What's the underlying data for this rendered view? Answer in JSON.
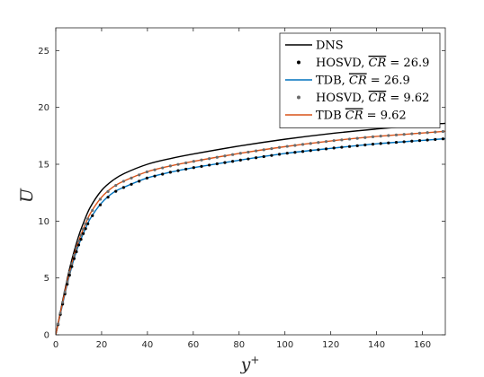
{
  "chart_data": {
    "type": "line",
    "title": "",
    "xlabel": "y",
    "xlabel_sup": "+",
    "ylabel": "U",
    "ylabel_accent": "bar",
    "xlim": [
      0,
      170
    ],
    "ylim": [
      0,
      27
    ],
    "x_ticks": [
      0,
      20,
      40,
      60,
      80,
      100,
      120,
      140,
      160
    ],
    "y_ticks": [
      0,
      5,
      10,
      15,
      20,
      25
    ],
    "grid": false,
    "legend_position": "top-right",
    "legend": [
      {
        "id": "dns",
        "text": "DNS",
        "marker": "line",
        "color": "#000000"
      },
      {
        "id": "hosvd1",
        "prefix": "HOSVD, ",
        "cr_symbol": "CR",
        "suffix": " = 26.9",
        "marker": "dot",
        "color": "#000000"
      },
      {
        "id": "tdb1",
        "prefix": "TDB, ",
        "cr_symbol": "CR",
        "suffix": " = 26.9",
        "marker": "line",
        "color": "#0072BD"
      },
      {
        "id": "hosvd2",
        "prefix": "HOSVD, ",
        "cr_symbol": "CR",
        "suffix": " = 9.62",
        "marker": "dot",
        "color": "#6b6b6b"
      },
      {
        "id": "tdb2",
        "prefix": "TDB ",
        "cr_symbol": "CR",
        "suffix": " = 9.62",
        "marker": "line",
        "color": "#D95319"
      }
    ],
    "x": [
      0,
      1,
      2,
      3,
      4,
      5,
      6,
      7,
      8,
      10,
      12,
      15,
      20,
      25,
      30,
      40,
      50,
      60,
      80,
      100,
      120,
      140,
      160,
      170
    ],
    "series": [
      {
        "id": "dns",
        "style": "line",
        "color": "#000000",
        "values": [
          0,
          1.0,
          2.0,
          3.0,
          3.95,
          4.9,
          5.8,
          6.6,
          7.35,
          8.7,
          9.8,
          11.2,
          12.7,
          13.6,
          14.2,
          15.0,
          15.5,
          15.9,
          16.6,
          17.2,
          17.7,
          18.1,
          18.45,
          18.6
        ]
      },
      {
        "id": "tdb1",
        "style": "line",
        "color": "#0072BD",
        "values": [
          0,
          0.9,
          1.8,
          2.7,
          3.6,
          4.45,
          5.25,
          6.0,
          6.7,
          7.9,
          8.9,
          10.2,
          11.6,
          12.5,
          13.0,
          13.8,
          14.3,
          14.7,
          15.35,
          15.95,
          16.4,
          16.8,
          17.1,
          17.25
        ]
      },
      {
        "id": "hosvd1",
        "style": "dots",
        "color": "#000000",
        "values": [
          0,
          0.9,
          1.8,
          2.7,
          3.6,
          4.45,
          5.25,
          6.0,
          6.7,
          7.9,
          8.9,
          10.2,
          11.6,
          12.5,
          13.0,
          13.8,
          14.3,
          14.7,
          15.35,
          15.95,
          16.4,
          16.8,
          17.1,
          17.25
        ]
      },
      {
        "id": "tdb2",
        "style": "line",
        "color": "#D95319",
        "values": [
          0,
          0.95,
          1.9,
          2.85,
          3.75,
          4.65,
          5.5,
          6.25,
          7.0,
          8.25,
          9.3,
          10.65,
          12.1,
          13.0,
          13.55,
          14.35,
          14.85,
          15.25,
          15.95,
          16.55,
          17.05,
          17.45,
          17.75,
          17.9
        ]
      },
      {
        "id": "hosvd2",
        "style": "dots",
        "color": "#6b6b6b",
        "values": [
          0,
          0.95,
          1.9,
          2.85,
          3.75,
          4.65,
          5.5,
          6.25,
          7.0,
          8.25,
          9.3,
          10.65,
          12.1,
          13.0,
          13.55,
          14.35,
          14.85,
          15.25,
          15.95,
          16.55,
          17.05,
          17.45,
          17.75,
          17.9
        ]
      }
    ]
  }
}
